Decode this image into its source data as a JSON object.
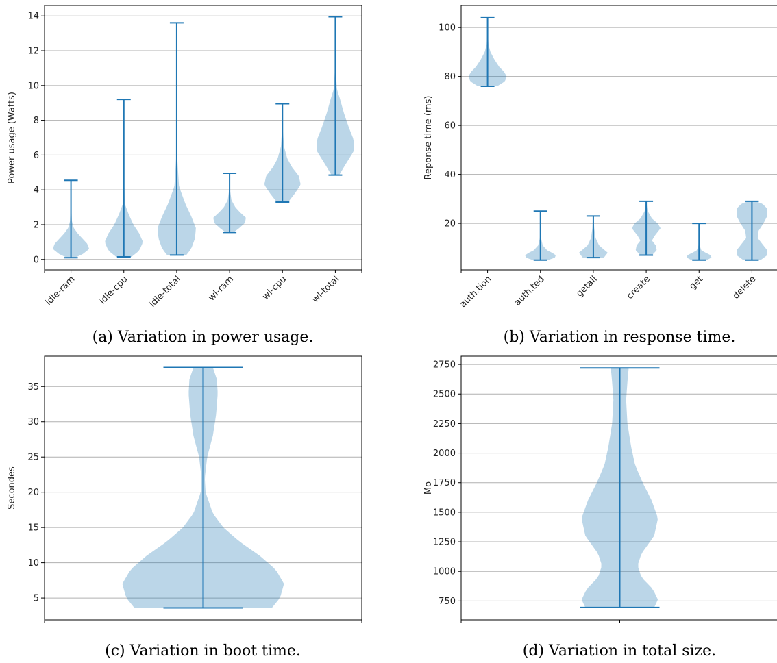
{
  "chart_data": [
    {
      "type": "violin",
      "caption": "(a) Variation in power usage.",
      "ylabel": "Power usage (Watts)",
      "ylim": [
        -0.6,
        14.6
      ],
      "yticks": [
        0,
        2,
        4,
        6,
        8,
        10,
        12,
        14
      ],
      "grid": "horizontal",
      "categories": [
        "idle-ram",
        "idle-cpu",
        "idle-total",
        "wl-ram",
        "wl-cpu",
        "wl-total"
      ],
      "series": [
        {
          "min": 0.1,
          "max": 4.55,
          "density": [
            [
              0.1,
              0.2
            ],
            [
              0.3,
              0.6
            ],
            [
              0.6,
              0.95
            ],
            [
              0.9,
              0.85
            ],
            [
              1.2,
              0.6
            ],
            [
              1.5,
              0.35
            ],
            [
              1.8,
              0.15
            ],
            [
              2.2,
              0.05
            ],
            [
              3.0,
              0.02
            ],
            [
              4.55,
              0.0
            ]
          ]
        },
        {
          "min": 0.15,
          "max": 9.2,
          "density": [
            [
              0.15,
              0.4
            ],
            [
              0.5,
              0.8
            ],
            [
              1.0,
              1.0
            ],
            [
              1.5,
              0.8
            ],
            [
              2.0,
              0.5
            ],
            [
              2.6,
              0.25
            ],
            [
              3.2,
              0.05
            ],
            [
              5.0,
              0.01
            ],
            [
              9.2,
              0.0
            ]
          ]
        },
        {
          "min": 0.25,
          "max": 13.6,
          "density": [
            [
              0.25,
              0.5
            ],
            [
              0.6,
              0.75
            ],
            [
              1.2,
              0.95
            ],
            [
              1.8,
              1.0
            ],
            [
              2.5,
              0.75
            ],
            [
              3.2,
              0.45
            ],
            [
              4.2,
              0.12
            ],
            [
              6.0,
              0.02
            ],
            [
              13.6,
              0.0
            ]
          ]
        },
        {
          "min": 1.55,
          "max": 4.95,
          "density": [
            [
              1.55,
              0.2
            ],
            [
              1.8,
              0.5
            ],
            [
              2.1,
              0.8
            ],
            [
              2.4,
              0.85
            ],
            [
              2.7,
              0.55
            ],
            [
              3.0,
              0.3
            ],
            [
              3.4,
              0.1
            ],
            [
              4.0,
              0.02
            ],
            [
              4.95,
              0.0
            ]
          ]
        },
        {
          "min": 3.3,
          "max": 8.95,
          "density": [
            [
              3.3,
              0.3
            ],
            [
              3.8,
              0.65
            ],
            [
              4.3,
              0.95
            ],
            [
              4.8,
              0.85
            ],
            [
              5.3,
              0.5
            ],
            [
              5.8,
              0.25
            ],
            [
              6.5,
              0.08
            ],
            [
              7.5,
              0.02
            ],
            [
              8.95,
              0.0
            ]
          ]
        },
        {
          "min": 4.85,
          "max": 13.95,
          "density": [
            [
              4.85,
              0.2
            ],
            [
              5.5,
              0.55
            ],
            [
              6.2,
              0.95
            ],
            [
              6.9,
              0.95
            ],
            [
              7.6,
              0.7
            ],
            [
              8.4,
              0.45
            ],
            [
              9.2,
              0.25
            ],
            [
              9.8,
              0.08
            ],
            [
              11.0,
              0.02
            ],
            [
              13.95,
              0.0
            ]
          ]
        }
      ]
    },
    {
      "type": "violin",
      "caption": "(b) Variation in response time.",
      "ylabel": "Reponse time (ms)",
      "ylim": [
        1,
        109
      ],
      "yticks": [
        20,
        40,
        60,
        80,
        100
      ],
      "grid": "horizontal",
      "categories": [
        "auth.tion",
        "auth.ted",
        "getall",
        "create",
        "get",
        "delete"
      ],
      "series": [
        {
          "min": 76,
          "max": 104,
          "density": [
            [
              76,
              0.5
            ],
            [
              78,
              0.9
            ],
            [
              80,
              1.0
            ],
            [
              82,
              0.85
            ],
            [
              84,
              0.6
            ],
            [
              87,
              0.35
            ],
            [
              90,
              0.15
            ],
            [
              93,
              0.05
            ],
            [
              98,
              0.01
            ],
            [
              104,
              0.0
            ]
          ]
        },
        {
          "min": 5,
          "max": 25,
          "density": [
            [
              5,
              0.4
            ],
            [
              6,
              0.75
            ],
            [
              7,
              0.8
            ],
            [
              8,
              0.6
            ],
            [
              9,
              0.35
            ],
            [
              11,
              0.12
            ],
            [
              14,
              0.03
            ],
            [
              25,
              0.0
            ]
          ]
        },
        {
          "min": 6,
          "max": 23,
          "density": [
            [
              6,
              0.55
            ],
            [
              7,
              0.65
            ],
            [
              8,
              0.75
            ],
            [
              9,
              0.6
            ],
            [
              11,
              0.3
            ],
            [
              14,
              0.12
            ],
            [
              18,
              0.05
            ],
            [
              22,
              0.02
            ],
            [
              23,
              0.0
            ]
          ]
        },
        {
          "min": 7,
          "max": 29,
          "density": [
            [
              7,
              0.3
            ],
            [
              9,
              0.55
            ],
            [
              11,
              0.5
            ],
            [
              13,
              0.3
            ],
            [
              15,
              0.45
            ],
            [
              18,
              0.75
            ],
            [
              20,
              0.6
            ],
            [
              22,
              0.3
            ],
            [
              25,
              0.08
            ],
            [
              29,
              0.0
            ]
          ]
        },
        {
          "min": 5,
          "max": 20,
          "density": [
            [
              5,
              0.4
            ],
            [
              6,
              0.65
            ],
            [
              7,
              0.6
            ],
            [
              8,
              0.35
            ],
            [
              9,
              0.12
            ],
            [
              11,
              0.03
            ],
            [
              20,
              0.0
            ]
          ]
        },
        {
          "min": 5,
          "max": 29,
          "density": [
            [
              5,
              0.45
            ],
            [
              7,
              0.8
            ],
            [
              9,
              0.8
            ],
            [
              11,
              0.6
            ],
            [
              14,
              0.3
            ],
            [
              17,
              0.35
            ],
            [
              20,
              0.6
            ],
            [
              23,
              0.8
            ],
            [
              26,
              0.8
            ],
            [
              28,
              0.55
            ],
            [
              29,
              0.2
            ]
          ]
        }
      ]
    },
    {
      "type": "violin",
      "caption": "(c) Variation in boot time.",
      "ylabel": "Secondes",
      "ylim": [
        1.9,
        39.3
      ],
      "yticks": [
        5,
        10,
        15,
        20,
        25,
        30,
        35
      ],
      "grid": "horizontal",
      "categories": [
        ""
      ],
      "series": [
        {
          "min": 3.6,
          "max": 37.7,
          "density": [
            [
              3.6,
              0.85
            ],
            [
              5,
              0.95
            ],
            [
              7,
              1.0
            ],
            [
              9,
              0.9
            ],
            [
              11,
              0.7
            ],
            [
              13,
              0.45
            ],
            [
              15,
              0.25
            ],
            [
              17,
              0.12
            ],
            [
              20,
              0.03
            ],
            [
              22,
              0.02
            ],
            [
              25,
              0.05
            ],
            [
              28,
              0.12
            ],
            [
              31,
              0.16
            ],
            [
              34,
              0.18
            ],
            [
              36,
              0.17
            ],
            [
              37.7,
              0.12
            ]
          ]
        }
      ]
    },
    {
      "type": "violin",
      "caption": "(d) Variation in total size.",
      "ylabel": "Mo",
      "ylim": [
        590,
        2820
      ],
      "yticks": [
        750,
        1000,
        1250,
        1500,
        1750,
        2000,
        2250,
        2500,
        2750
      ],
      "grid": "horizontal",
      "categories": [
        ""
      ],
      "series": [
        {
          "min": 695,
          "max": 2720,
          "density": [
            [
              695,
              0.27
            ],
            [
              760,
              0.3
            ],
            [
              850,
              0.26
            ],
            [
              950,
              0.17
            ],
            [
              1050,
              0.14
            ],
            [
              1150,
              0.17
            ],
            [
              1300,
              0.27
            ],
            [
              1450,
              0.3
            ],
            [
              1600,
              0.25
            ],
            [
              1750,
              0.18
            ],
            [
              1900,
              0.12
            ],
            [
              2050,
              0.09
            ],
            [
              2250,
              0.06
            ],
            [
              2450,
              0.05
            ],
            [
              2600,
              0.06
            ],
            [
              2720,
              0.07
            ]
          ]
        }
      ]
    }
  ]
}
